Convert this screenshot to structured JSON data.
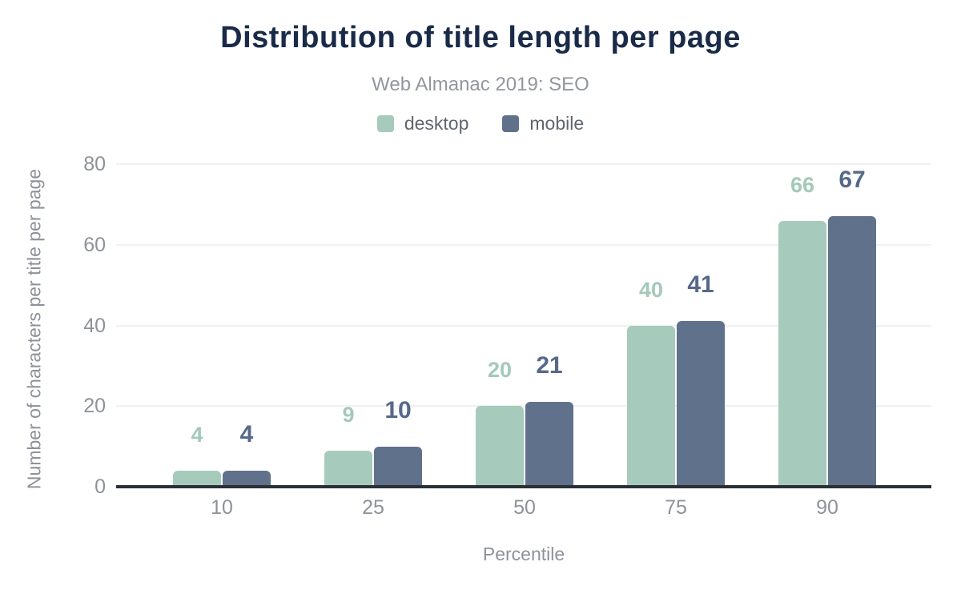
{
  "chart_data": {
    "type": "bar",
    "title": "Distribution of title length per page",
    "subtitle": "Web Almanac 2019: SEO",
    "xlabel": "Percentile",
    "ylabel": "Number of characters per title per page",
    "categories": [
      "10",
      "25",
      "50",
      "75",
      "90"
    ],
    "series": [
      {
        "name": "desktop",
        "color": "#a6cabb",
        "label_color": "#a3c9b9",
        "values": [
          4,
          9,
          20,
          40,
          66
        ]
      },
      {
        "name": "mobile",
        "color": "#60718c",
        "label_color": "#57698a",
        "values": [
          4,
          10,
          21,
          41,
          67
        ]
      }
    ],
    "yticks": [
      0,
      20,
      40,
      60,
      80
    ],
    "ylim": [
      0,
      80
    ],
    "grid": "horizontal",
    "legend_position": "top",
    "data_labels": true
  },
  "colors": {
    "title": "#1a2b49",
    "subtitle": "#92979e",
    "axis_text": "#8d929a",
    "legend_text": "#5f666f",
    "gridline": "#f1f1f3",
    "baseline": "#2b2f36",
    "background": "#ffffff"
  }
}
